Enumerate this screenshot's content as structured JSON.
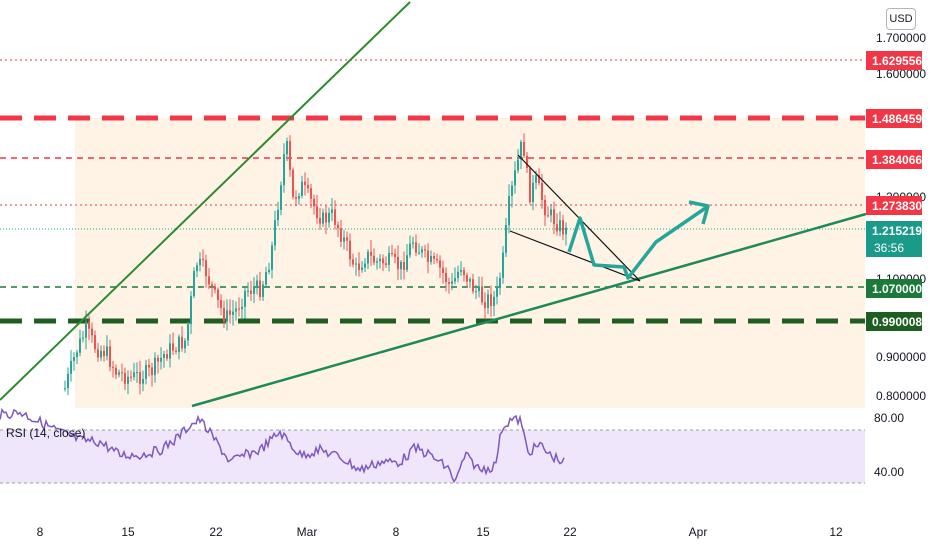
{
  "currency": "USD",
  "chart_data": {
    "type": "candlestick",
    "price_axis": {
      "ticks": [
        "1.700000",
        "1.600000",
        "1.200000",
        "1.100000",
        "0.900000",
        "0.800000"
      ]
    },
    "levels": [
      {
        "value": "1.629556",
        "color": "#f23645",
        "style": "dotted"
      },
      {
        "value": "1.486459",
        "color": "#f23645",
        "style": "thick-dashed"
      },
      {
        "value": "1.384066",
        "color": "#f23645",
        "style": "dashed"
      },
      {
        "value": "1.273830",
        "color": "#f23645",
        "style": "dotted"
      },
      {
        "value": "1.070000",
        "color": "#1b7a3a",
        "style": "dashed"
      },
      {
        "value": "0.990008",
        "color": "#1e5e20",
        "style": "thick-dashed"
      }
    ],
    "last_price": {
      "value": "1.215219",
      "countdown": "36:56",
      "color": "#1a9a88"
    },
    "x_axis": {
      "ticks": [
        "8",
        "15",
        "22",
        "Mar",
        "8",
        "15",
        "22",
        "Apr",
        "12"
      ]
    },
    "rsi": {
      "label": "RSI (14, close)",
      "upper": "80.00",
      "lower": "40.00"
    }
  }
}
